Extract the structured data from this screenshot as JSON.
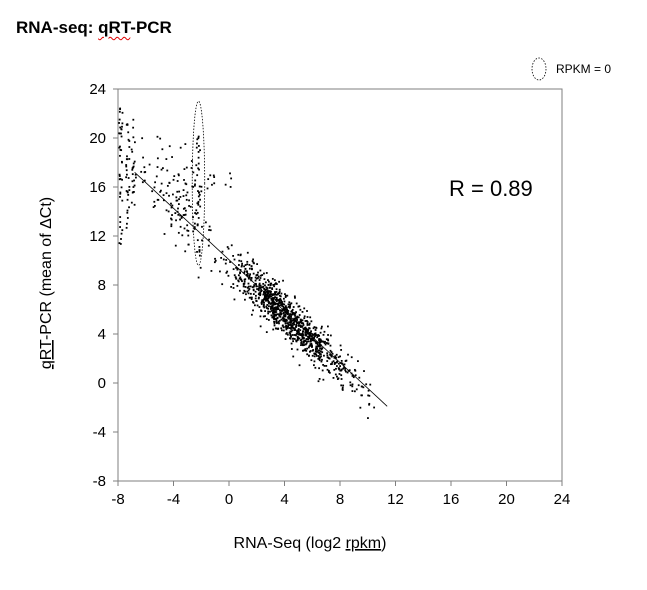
{
  "title": {
    "prefix": "RNA-seq: ",
    "word": "qRT",
    "suffix": "-PCR"
  },
  "chart_data": {
    "type": "scatter",
    "title": "RNA-seq: qRT-PCR",
    "xlabel": {
      "prefix": "RNA-Seq (log2 ",
      "underlined": "rpkm",
      "suffix": ")"
    },
    "ylabel": {
      "underlined": "qRT",
      "rest": "-PCR (mean of ΔCt)"
    },
    "xlim": [
      -8,
      24
    ],
    "ylim": [
      -8,
      24
    ],
    "x_ticks": [
      -8,
      -4,
      0,
      4,
      8,
      12,
      16,
      20,
      24
    ],
    "y_ticks": [
      -8,
      -4,
      0,
      4,
      8,
      12,
      16,
      20,
      24
    ],
    "grid": false,
    "legend": {
      "label": "RPKM = 0",
      "marker": "dotted-ellipse",
      "position": "top-right"
    },
    "annotation": "R = 0.89",
    "point_color": "#000000",
    "highlight_ellipse": {
      "cx": -2.2,
      "cy": 16.3,
      "rx": 0.45,
      "ry": 6.7
    },
    "trend_line": {
      "x": [
        -6.8,
        11.4
      ],
      "y": [
        17.2,
        -1.9
      ]
    },
    "clusters": [
      {
        "x_center": 3.8,
        "y_center": 5.8,
        "n": 900,
        "x_sd": 1.8,
        "resid_sd": 0.9,
        "slope": -1.05,
        "intercept": 9.8
      },
      {
        "x_center": 7.5,
        "y_center": 1.8,
        "n": 150,
        "x_sd": 1.5,
        "resid_sd": 0.9,
        "slope": -1.05,
        "intercept": 9.8
      },
      {
        "x_center": -3.2,
        "y_center": 12.5,
        "n": 80,
        "x_sd": 1.3,
        "resid_sd": 1.2,
        "slope": -1.05,
        "intercept": 9.8
      },
      {
        "x_center": -4.5,
        "y_center": 16.5,
        "n": 60,
        "x_sd": 1.5,
        "resid_sd": 1.6,
        "slope": -0.6,
        "intercept": 14.0
      },
      {
        "x_center": -1.5,
        "y_center": 16.8,
        "n": 20,
        "x_sd": 1.2,
        "resid_sd": 0.8,
        "slope": 0.0,
        "intercept": 16.8
      }
    ],
    "columns": [
      {
        "x": -7.8,
        "y_min": 11.0,
        "y_max": 22.5,
        "n": 38
      },
      {
        "x": -7.3,
        "y_min": 12.5,
        "y_max": 21.5,
        "n": 28
      },
      {
        "x": -6.9,
        "y_min": 14.5,
        "y_max": 22.0,
        "n": 22
      },
      {
        "x": -2.2,
        "y_min": 10.0,
        "y_max": 20.5,
        "n": 30
      }
    ]
  }
}
